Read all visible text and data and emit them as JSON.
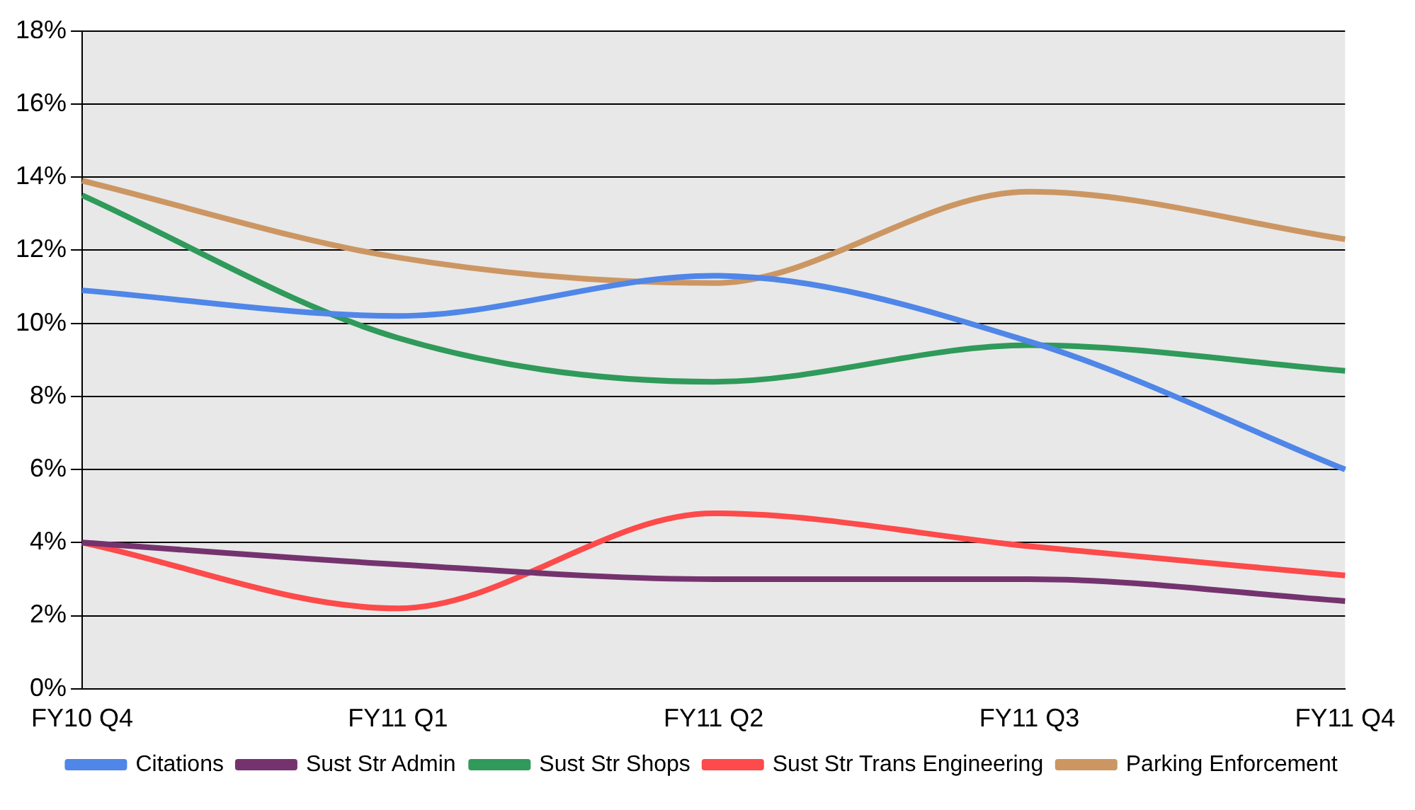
{
  "chart_data": {
    "type": "line",
    "categories": [
      "FY10 Q4",
      "FY11 Q1",
      "FY11 Q2",
      "FY11 Q3",
      "FY11 Q4"
    ],
    "series": [
      {
        "name": "Citations",
        "color": "#4f86e8",
        "values": [
          10.9,
          10.2,
          11.3,
          9.5,
          6.0
        ]
      },
      {
        "name": "Sust Str Admin",
        "color": "#74336f",
        "values": [
          4.0,
          3.4,
          3.0,
          3.0,
          2.4
        ]
      },
      {
        "name": "Sust Str Shops",
        "color": "#2f9a5a",
        "values": [
          13.5,
          9.6,
          8.4,
          9.4,
          8.7
        ]
      },
      {
        "name": "Sust Str Trans Engineering",
        "color": "#fd4a4a",
        "values": [
          4.0,
          2.2,
          4.8,
          3.9,
          3.1
        ]
      },
      {
        "name": "Parking Enforcement",
        "color": "#cc9663",
        "values": [
          13.9,
          11.8,
          11.1,
          13.6,
          12.3
        ]
      }
    ],
    "ylim": [
      0,
      18
    ],
    "yticks": [
      {
        "value": 0,
        "label": "0%"
      },
      {
        "value": 2,
        "label": "2%"
      },
      {
        "value": 4,
        "label": "4%"
      },
      {
        "value": 6,
        "label": "6%"
      },
      {
        "value": 8,
        "label": "8%"
      },
      {
        "value": 10,
        "label": "10%"
      },
      {
        "value": 12,
        "label": "12%"
      },
      {
        "value": 14,
        "label": "14%"
      },
      {
        "value": 16,
        "label": "16%"
      },
      {
        "value": 18,
        "label": "18%"
      }
    ],
    "grid": "y",
    "legend": "bottom",
    "marker": "none",
    "line_style": "solid"
  }
}
